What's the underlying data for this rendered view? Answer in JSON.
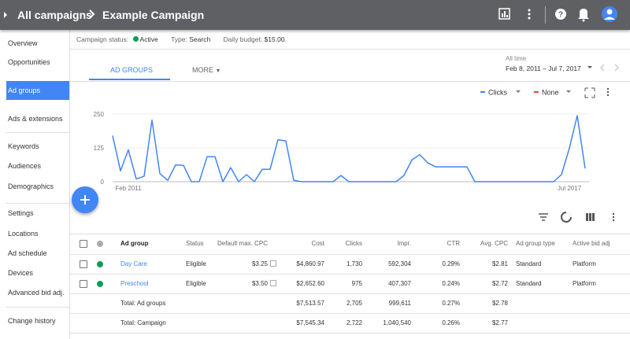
{
  "header": {
    "root": "All campaigns",
    "campaign": "Example Campaign"
  },
  "sidebar": {
    "items": [
      "Overview",
      "Opportunities",
      "Ad groups",
      "Ads & extensions",
      "Keywords",
      "Audiences",
      "Demographics",
      "Settings",
      "Locations",
      "Ad schedule",
      "Devices",
      "Advanced bid adj.",
      "Change history"
    ],
    "selected": "Ad groups"
  },
  "status_bar": {
    "status_label": "Campaign status:",
    "status": "Active",
    "type_label": "Type:",
    "type": "Search",
    "budget_label": "Daily budget:",
    "budget": "$15.00"
  },
  "tabs": [
    "AD GROUPS",
    "MORE"
  ],
  "date_range": {
    "label": "All time",
    "value": "Feb 8, 2011 – Jul 7, 2017"
  },
  "chart_data": {
    "type": "line",
    "categories": [
      null,
      null,
      "Feb 2011",
      null,
      null,
      null,
      null,
      null,
      null,
      null,
      null,
      null,
      null,
      null,
      null,
      null,
      null,
      null,
      null,
      null,
      null,
      null,
      null,
      null,
      null,
      null,
      null,
      null,
      null,
      null,
      null,
      null,
      null,
      null,
      null,
      null,
      null,
      null,
      null,
      null,
      null,
      null,
      null,
      null,
      null,
      null,
      null,
      null,
      null,
      null,
      null,
      null,
      null,
      null,
      null,
      null,
      null,
      null,
      "Jul 2017",
      null,
      null
    ],
    "series": [
      {
        "name": "Clicks",
        "color": "#4285f4",
        "values": [
          170,
          40,
          118,
          10,
          20,
          227,
          30,
          5,
          62,
          60,
          0,
          0,
          92,
          92,
          0,
          52,
          0,
          26,
          0,
          46,
          46,
          155,
          150,
          5,
          0,
          0,
          0,
          0,
          0,
          23,
          0,
          0,
          0,
          0,
          0,
          0,
          0,
          23,
          80,
          100,
          70,
          55,
          55,
          55,
          55,
          55,
          0,
          0,
          0,
          0,
          0,
          0,
          0,
          0,
          0,
          0,
          0,
          26,
          124,
          244,
          49
        ]
      }
    ],
    "compare_metric": {
      "name": "None",
      "color": "#ea4335"
    },
    "ylim": [
      0,
      270
    ],
    "yticks": [
      0,
      125,
      250
    ],
    "grid": true
  },
  "table": {
    "columns": [
      "Ad group",
      "Status",
      "Default max. CPC",
      "Cost",
      "Clicks",
      "Impr.",
      "CTR",
      "Avg. CPC",
      "Ad group type",
      "Active bid adj"
    ],
    "rows": [
      [
        "Day Care",
        "Eligible",
        "$3.25",
        "$4,860.97",
        "1,730",
        "592,304",
        "0.29%",
        "$2.81",
        "Standard",
        "Platform"
      ],
      [
        "Preschool",
        "Eligible",
        "$3.50",
        "$2,652.60",
        "975",
        "407,307",
        "0.24%",
        "$2.72",
        "Standard",
        "Platform"
      ]
    ],
    "totals": [
      [
        "Total: Ad groups",
        "$7,513.57",
        "2,705",
        "999,611",
        "0.27%",
        "$2.78"
      ],
      [
        "Total: Campaign",
        "$7,545.34",
        "2,722",
        "1,040,540",
        "0.26%",
        "$2.77"
      ]
    ]
  }
}
